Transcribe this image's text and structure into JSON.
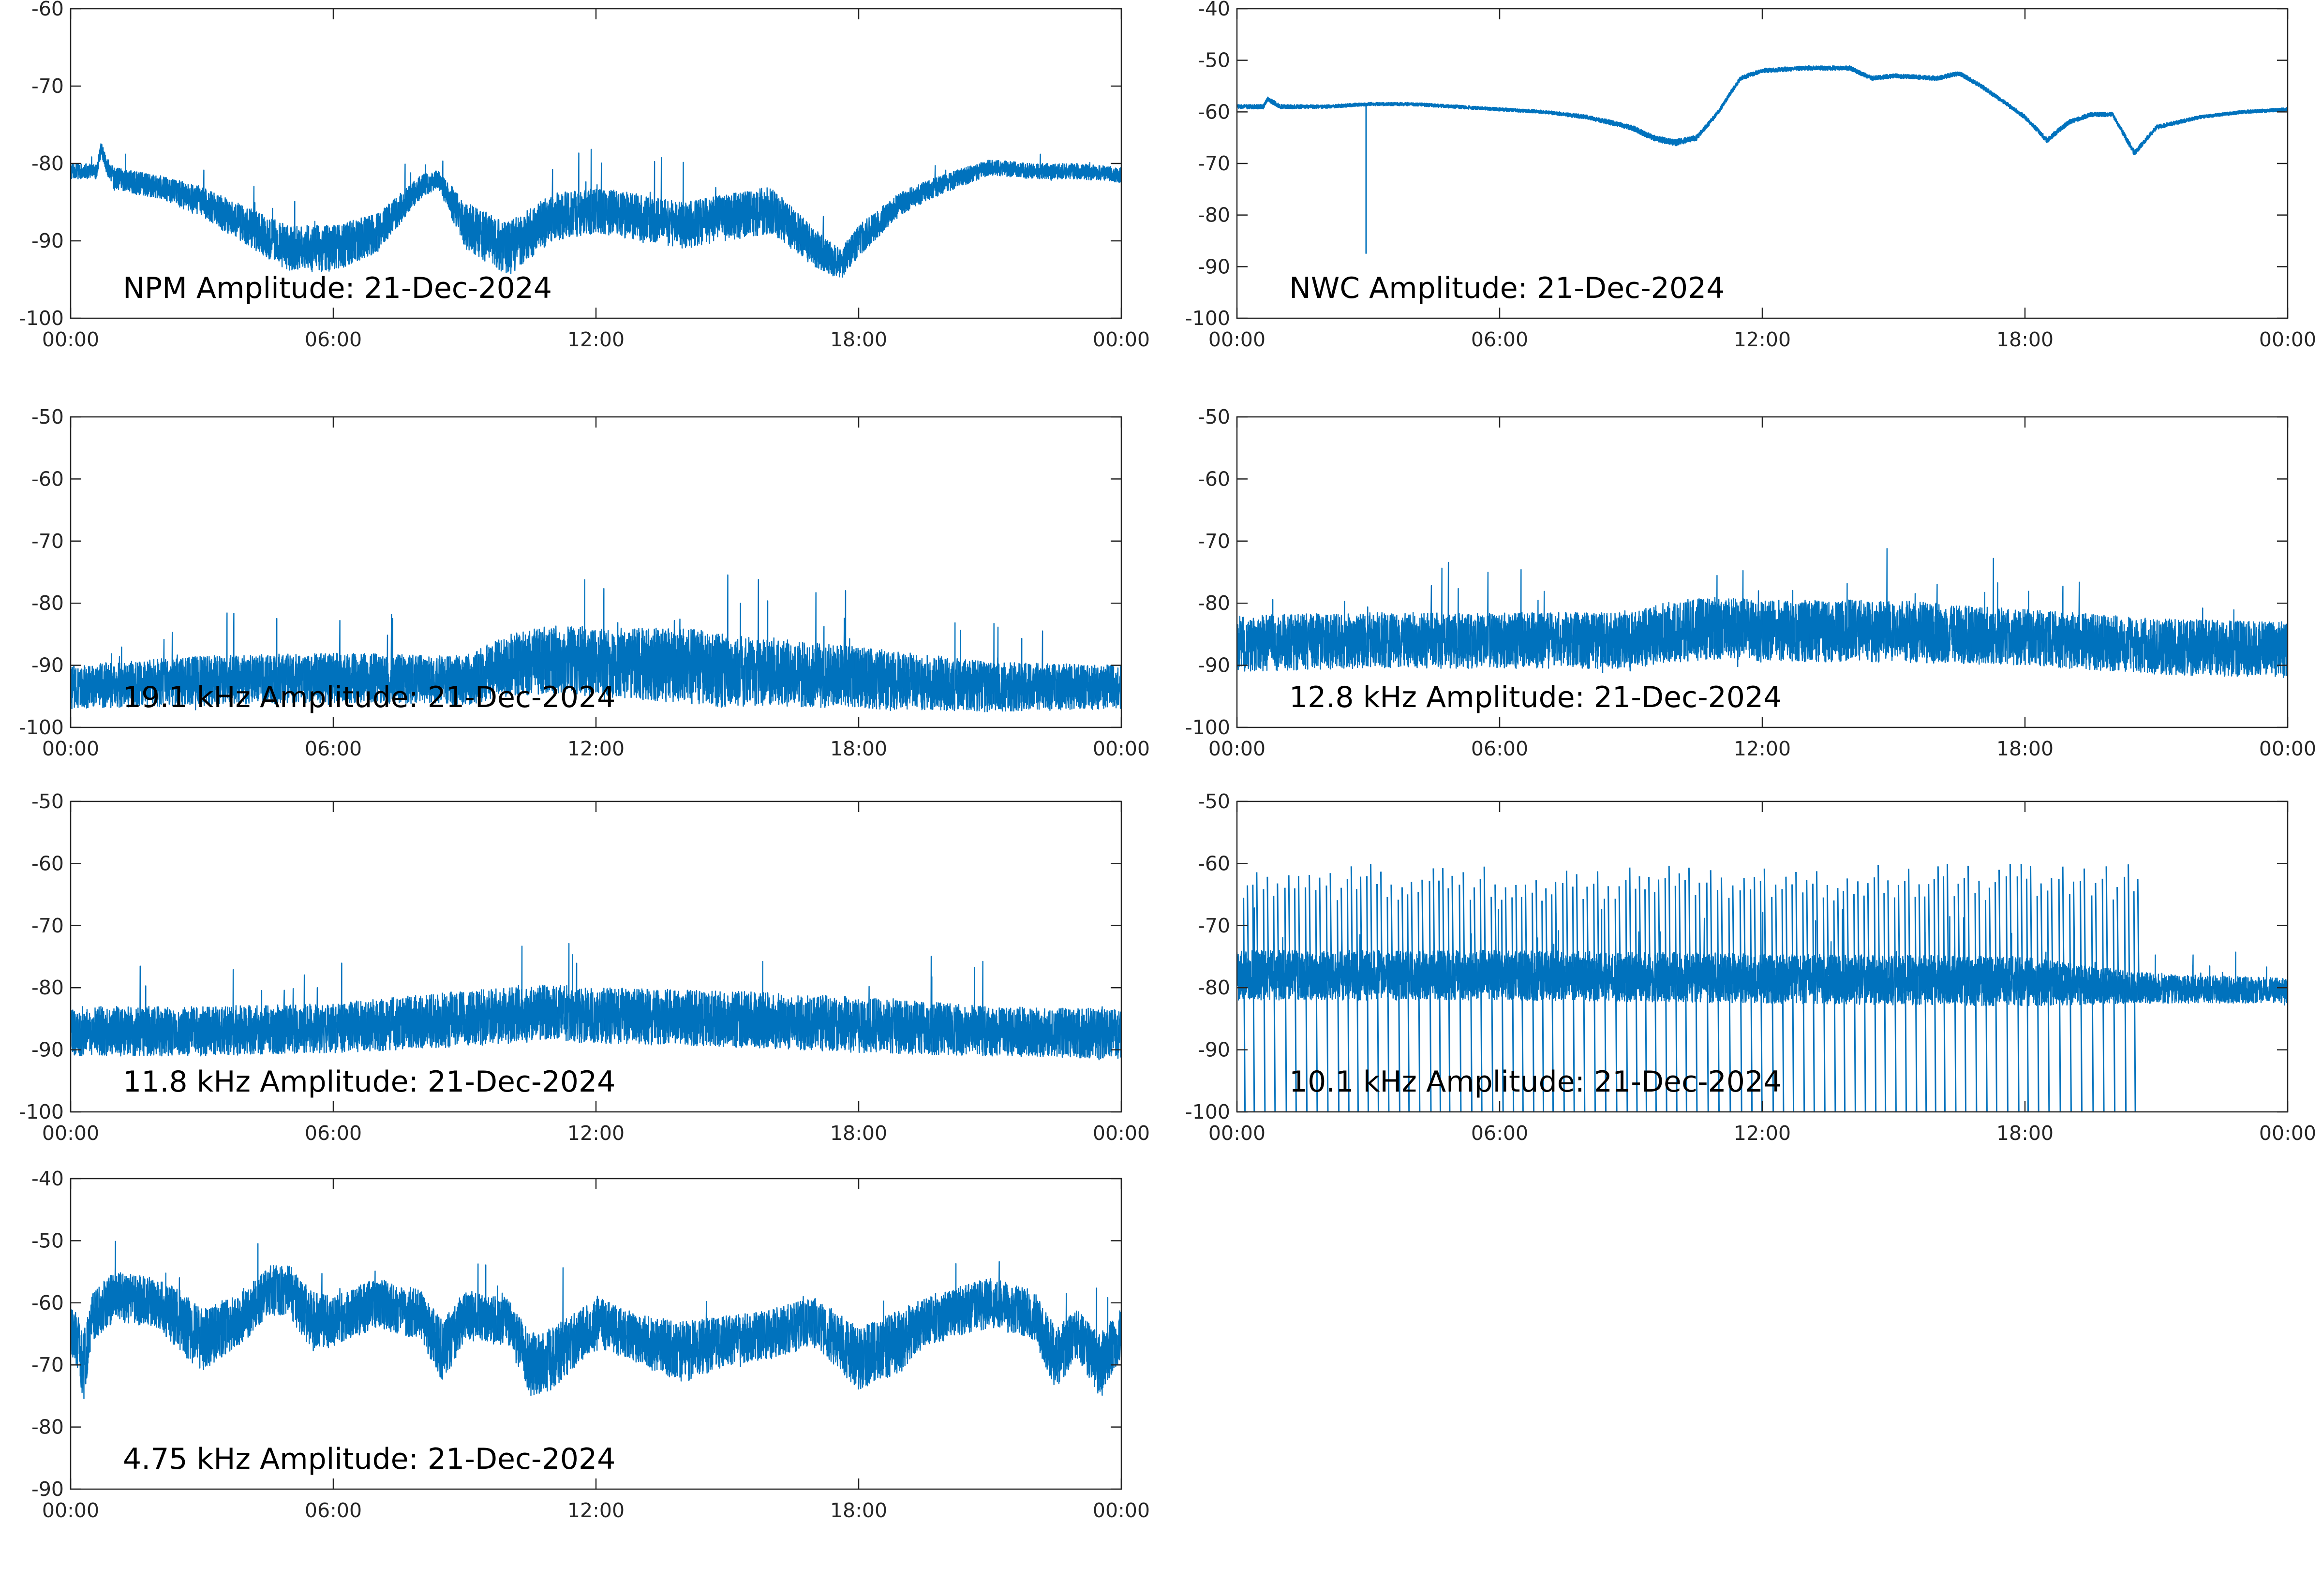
{
  "page": {
    "background": "#ffffff",
    "line_color": "#0072bd",
    "axis_color": "#262626"
  },
  "chart_data": [
    {
      "id": "npm",
      "type": "line",
      "title": "NPM Amplitude: 21-Dec-2024",
      "xlabel": "",
      "ylabel": "",
      "x_ticks": [
        "00:00",
        "06:00",
        "12:00",
        "18:00",
        "00:00"
      ],
      "x_hours": [
        0,
        24
      ],
      "ylim": [
        -100,
        -60
      ],
      "y_ticks": [
        -100,
        -90,
        -80,
        -70,
        -60
      ],
      "grid": false,
      "series": [
        {
          "x_hours": [
            0,
            0.6,
            0.7,
            0.8,
            1.0,
            1.5,
            2,
            3,
            4,
            5,
            6,
            7,
            8,
            8.4,
            9,
            10,
            11,
            12,
            13,
            14,
            15,
            16,
            17,
            17.6,
            18,
            19,
            20,
            21,
            22,
            23,
            24
          ],
          "center": [
            -81,
            -81,
            -78,
            -80,
            -82,
            -82.5,
            -83,
            -85,
            -88,
            -91,
            -91,
            -89,
            -83,
            -82,
            -88,
            -91,
            -87,
            -86,
            -87,
            -88,
            -87,
            -86,
            -91,
            -93,
            -90,
            -85,
            -82.5,
            -80.5,
            -81,
            -81,
            -81.5
          ],
          "spread": [
            1,
            1,
            0.8,
            1,
            1.5,
            1.5,
            1.5,
            2,
            2.5,
            3,
            3,
            2.5,
            1.5,
            1.2,
            3,
            3.5,
            3,
            3,
            3,
            3,
            3,
            3,
            2.5,
            2,
            2,
            1.5,
            1.2,
            1,
            1,
            1,
            1
          ]
        }
      ]
    },
    {
      "id": "nwc",
      "type": "line",
      "title": "NWC Amplitude: 21-Dec-2024",
      "xlabel": "",
      "ylabel": "",
      "x_ticks": [
        "00:00",
        "06:00",
        "12:00",
        "18:00",
        "00:00"
      ],
      "x_hours": [
        0,
        24
      ],
      "ylim": [
        -100,
        -40
      ],
      "y_ticks": [
        -100,
        -90,
        -80,
        -70,
        -60,
        -50,
        -40
      ],
      "grid": false,
      "spike": {
        "x_hour": 2.95,
        "y_min": -87.5
      },
      "series": [
        {
          "x_hours": [
            0,
            0.6,
            0.7,
            1.0,
            2,
            3,
            4,
            5,
            6,
            7,
            8,
            9,
            9.5,
            10,
            10.5,
            11,
            11.3,
            11.5,
            12,
            13,
            14,
            14.5,
            15,
            16,
            16.5,
            17,
            18,
            18.5,
            19,
            19.5,
            20,
            20.5,
            21,
            22,
            23,
            24
          ],
          "center": [
            -59,
            -59,
            -57.5,
            -59,
            -59,
            -58.5,
            -58.5,
            -59,
            -59.5,
            -60,
            -61,
            -63,
            -65,
            -66,
            -65,
            -60,
            -56,
            -53.5,
            -52,
            -51.5,
            -51.5,
            -53.5,
            -53,
            -53.5,
            -52.5,
            -55,
            -61,
            -65.5,
            -62,
            -60.5,
            -60.5,
            -68,
            -63,
            -61,
            -60,
            -59.5
          ],
          "spread": [
            0.4,
            0.4,
            0.4,
            0.4,
            0.3,
            0.3,
            0.3,
            0.3,
            0.3,
            0.3,
            0.4,
            0.5,
            0.5,
            0.6,
            0.5,
            0.4,
            0.4,
            0.4,
            0.4,
            0.4,
            0.4,
            0.4,
            0.4,
            0.4,
            0.4,
            0.4,
            0.4,
            0.5,
            0.4,
            0.4,
            0.4,
            0.5,
            0.4,
            0.3,
            0.3,
            0.3
          ]
        }
      ]
    },
    {
      "id": "k191",
      "type": "line",
      "title": "19.1 kHz Amplitude: 21-Dec-2024",
      "xlabel": "",
      "ylabel": "",
      "x_ticks": [
        "00:00",
        "06:00",
        "12:00",
        "18:00",
        "00:00"
      ],
      "x_hours": [
        0,
        24
      ],
      "ylim": [
        -100,
        -50
      ],
      "y_ticks": [
        -100,
        -90,
        -80,
        -70,
        -60,
        -50
      ],
      "grid": false,
      "series": [
        {
          "x_hours": [
            0,
            3,
            6,
            9,
            10,
            11,
            12,
            14,
            15,
            16,
            18,
            21,
            24
          ],
          "center": [
            -93.5,
            -92.5,
            -92,
            -92.5,
            -90,
            -89,
            -89.5,
            -90,
            -91,
            -91,
            -92,
            -93.5,
            -93.5
          ],
          "spread": [
            3.5,
            4,
            4,
            4,
            5,
            5.5,
            5.5,
            6,
            6,
            5.5,
            5,
            4,
            3.5
          ]
        }
      ]
    },
    {
      "id": "k128",
      "type": "line",
      "title": "12.8 kHz Amplitude: 21-Dec-2024",
      "xlabel": "",
      "ylabel": "",
      "x_ticks": [
        "00:00",
        "06:00",
        "12:00",
        "18:00",
        "00:00"
      ],
      "x_hours": [
        0,
        24
      ],
      "ylim": [
        -100,
        -50
      ],
      "y_ticks": [
        -100,
        -90,
        -80,
        -70,
        -60,
        -50
      ],
      "grid": false,
      "series": [
        {
          "x_hours": [
            0,
            3,
            6,
            9,
            10,
            11,
            12,
            15,
            18,
            21,
            24
          ],
          "center": [
            -86.5,
            -86,
            -86,
            -86,
            -84.5,
            -84,
            -84.5,
            -84.5,
            -85.5,
            -87,
            -87.5
          ],
          "spread": [
            4.5,
            4.5,
            4.5,
            4.5,
            5,
            5,
            5,
            5,
            4.5,
            4.5,
            4.5
          ]
        }
      ]
    },
    {
      "id": "k118",
      "type": "line",
      "title": "11.8 kHz Amplitude: 21-Dec-2024",
      "xlabel": "",
      "ylabel": "",
      "x_ticks": [
        "00:00",
        "06:00",
        "12:00",
        "18:00",
        "00:00"
      ],
      "x_hours": [
        0,
        24
      ],
      "ylim": [
        -100,
        -50
      ],
      "y_ticks": [
        -100,
        -90,
        -80,
        -70,
        -60,
        -50
      ],
      "grid": false,
      "series": [
        {
          "x_hours": [
            0,
            3,
            6,
            9,
            11,
            12,
            15,
            18,
            21,
            24
          ],
          "center": [
            -87,
            -87,
            -86.5,
            -85,
            -84,
            -84.5,
            -85,
            -86,
            -87,
            -87.5
          ],
          "spread": [
            4,
            4,
            4,
            4.5,
            4.5,
            4.5,
            4.5,
            4.5,
            4,
            4
          ]
        }
      ]
    },
    {
      "id": "k101",
      "type": "line",
      "title": "10.1 kHz Amplitude: 21-Dec-2024",
      "xlabel": "",
      "ylabel": "",
      "x_ticks": [
        "00:00",
        "06:00",
        "12:00",
        "18:00",
        "00:00"
      ],
      "x_hours": [
        0,
        24
      ],
      "ylim": [
        -100,
        -50
      ],
      "y_ticks": [
        -100,
        -90,
        -80,
        -70,
        -60,
        -50
      ],
      "grid": false,
      "bursts_end_hour": 20.5,
      "series": [
        {
          "x_hours": [
            0,
            6,
            12,
            18,
            20.5,
            24
          ],
          "center": [
            -78,
            -78,
            -78.5,
            -79,
            -80,
            -80.5
          ],
          "spread": [
            4,
            4,
            4,
            4,
            2.5,
            2
          ]
        }
      ]
    },
    {
      "id": "k475",
      "type": "line",
      "title": "4.75 kHz Amplitude: 21-Dec-2024",
      "xlabel": "",
      "ylabel": "",
      "x_ticks": [
        "00:00",
        "06:00",
        "12:00",
        "18:00",
        "00:00"
      ],
      "x_hours": [
        0,
        24
      ],
      "ylim": [
        -90,
        -40
      ],
      "y_ticks": [
        -90,
        -80,
        -70,
        -60,
        -50,
        -40
      ],
      "grid": false,
      "series": [
        {
          "x_hours": [
            0,
            0.3,
            0.5,
            1,
            2,
            2.5,
            3,
            4,
            4.5,
            5,
            5.5,
            6,
            7,
            8,
            8.5,
            9,
            10,
            10.5,
            11,
            12,
            13,
            14,
            15,
            16,
            17,
            18,
            19,
            19.5,
            20,
            21,
            22,
            22.5,
            23,
            23.5,
            24
          ],
          "center": [
            -64,
            -70,
            -62,
            -59,
            -60,
            -63,
            -66,
            -62,
            -58,
            -58,
            -63,
            -63,
            -60,
            -62,
            -68,
            -62,
            -63,
            -70,
            -69,
            -63,
            -66,
            -68,
            -66,
            -65,
            -63,
            -69,
            -66,
            -63,
            -62,
            -60,
            -62,
            -69,
            -65,
            -70,
            -65
          ],
          "spread": [
            4,
            6,
            4,
            4,
            4,
            5,
            5,
            4,
            4,
            4,
            5,
            4,
            4,
            4,
            5,
            4,
            4,
            5,
            5,
            4,
            4,
            5,
            4,
            4,
            4,
            5,
            5,
            4,
            4,
            4,
            4,
            5,
            4,
            5,
            4
          ]
        }
      ]
    }
  ]
}
